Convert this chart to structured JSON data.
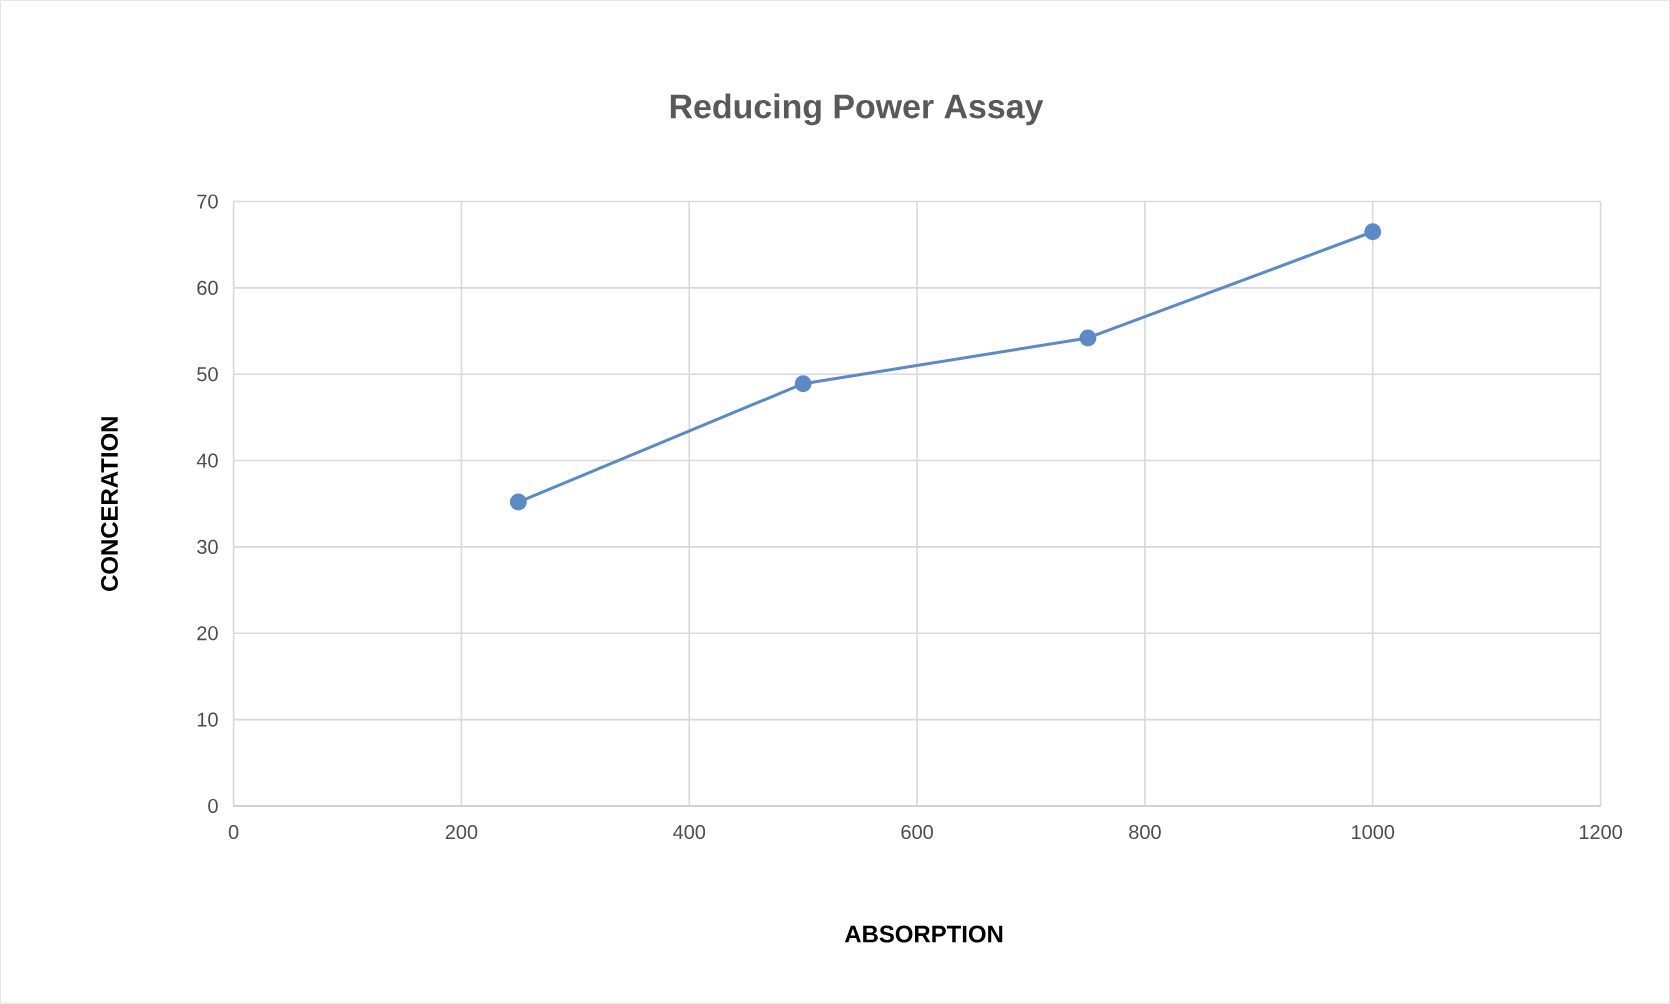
{
  "chart_data": {
    "type": "line",
    "title": "Reducing Power Assay",
    "xlabel": "ABSORPTION",
    "ylabel": "CONCERATION",
    "x": [
      250,
      500,
      750,
      1000
    ],
    "series": [
      {
        "color": "#5b8ac6",
        "values": [
          35.2,
          48.9,
          54.2,
          66.5
        ]
      }
    ],
    "xlim": [
      0,
      1200
    ],
    "xticks": [
      0,
      200,
      400,
      600,
      800,
      1000,
      1200
    ],
    "ylim": [
      0,
      70
    ],
    "yticks": [
      0,
      10,
      20,
      30,
      40,
      50,
      60,
      70
    ],
    "grid": true,
    "marker": "circle",
    "line_style": "solid"
  }
}
